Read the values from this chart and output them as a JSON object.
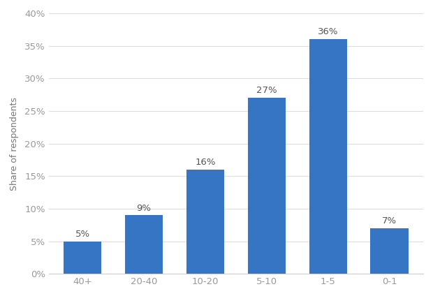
{
  "categories": [
    "40+",
    "20-40",
    "10-20",
    "5-10",
    "1-5",
    "0-1"
  ],
  "values": [
    5,
    9,
    16,
    27,
    36,
    7
  ],
  "bar_color": "#3575c3",
  "ylabel": "Share of respondents",
  "ylim": [
    0,
    40
  ],
  "yticks": [
    0,
    5,
    10,
    15,
    20,
    25,
    30,
    35,
    40
  ],
  "background_color": "#ffffff",
  "plot_area_color": "#ffffff",
  "grid_color": "#dddddd",
  "label_fontsize": 9.5,
  "ylabel_fontsize": 9,
  "bar_label_fontsize": 9.5,
  "bar_label_color": "#555555",
  "tick_label_color": "#999999",
  "ylabel_color": "#777777"
}
